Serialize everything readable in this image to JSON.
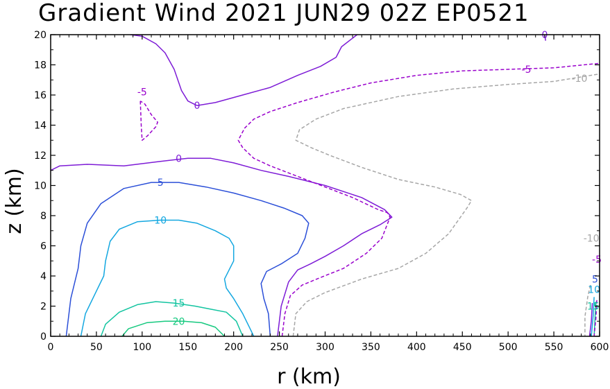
{
  "chart_data": {
    "type": "contour",
    "title": "Gradient Wind 2021 JUN29 02Z   EP0521",
    "xlabel": "r (km)",
    "ylabel": "z (km)",
    "xlim": [
      0,
      600
    ],
    "ylim": [
      0,
      20
    ],
    "xticks": [
      "0",
      "50",
      "100",
      "150",
      "200",
      "250",
      "300",
      "350",
      "400",
      "450",
      "500",
      "550",
      "600"
    ],
    "yticks": [
      "0",
      "2",
      "4",
      "6",
      "8",
      "10",
      "12",
      "14",
      "16",
      "18",
      "20"
    ],
    "levels": [
      {
        "value": -10,
        "label": "-10",
        "color": "#a6a6a6",
        "dashed": true
      },
      {
        "value": -5,
        "label": "-5",
        "color": "#9900cc",
        "dashed": true
      },
      {
        "value": 0,
        "label": "0",
        "color": "#7d1bd6",
        "dashed": false
      },
      {
        "value": 5,
        "label": "5",
        "color": "#2b4fd8",
        "dashed": false
      },
      {
        "value": 10,
        "label": "10",
        "color": "#13a7e0",
        "dashed": false
      },
      {
        "value": 15,
        "label": "15",
        "color": "#12c4a0",
        "dashed": false
      },
      {
        "value": 20,
        "label": "20",
        "color": "#16c97f",
        "dashed": false
      }
    ],
    "contours": [
      {
        "level": "0",
        "points": [
          [
            87,
            20
          ],
          [
            100,
            19.9
          ],
          [
            115,
            19.4
          ],
          [
            125,
            18.8
          ],
          [
            135,
            17.7
          ],
          [
            143,
            16.3
          ],
          [
            150,
            15.6
          ],
          [
            160,
            15.3
          ],
          [
            180,
            15.5
          ],
          [
            210,
            16.0
          ],
          [
            240,
            16.5
          ],
          [
            270,
            17.3
          ],
          [
            295,
            17.9
          ],
          [
            312,
            18.5
          ],
          [
            318,
            19.2
          ],
          [
            335,
            20
          ]
        ]
      },
      {
        "level": "0",
        "points": [
          [
            0,
            11.0
          ],
          [
            10,
            11.3
          ],
          [
            40,
            11.4
          ],
          [
            80,
            11.3
          ],
          [
            120,
            11.6
          ],
          [
            150,
            11.8
          ],
          [
            175,
            11.8
          ],
          [
            200,
            11.5
          ],
          [
            230,
            11.0
          ],
          [
            260,
            10.6
          ],
          [
            300,
            10.0
          ],
          [
            340,
            9.2
          ],
          [
            365,
            8.4
          ],
          [
            373,
            7.9
          ],
          [
            360,
            7.4
          ],
          [
            340,
            6.8
          ],
          [
            320,
            6.0
          ],
          [
            300,
            5.3
          ],
          [
            284,
            4.8
          ],
          [
            270,
            4.4
          ],
          [
            260,
            3.6
          ],
          [
            252,
            2.0
          ],
          [
            248,
            0
          ]
        ]
      },
      {
        "level": "0",
        "points": [
          [
            540,
            20
          ],
          [
            541,
            19.6
          ]
        ]
      },
      {
        "level": "0",
        "points": [
          [
            592,
            2.2
          ],
          [
            591,
            1.0
          ],
          [
            589,
            0
          ]
        ]
      },
      {
        "level": "5",
        "points": [
          [
            17,
            0
          ],
          [
            22,
            2.5
          ],
          [
            30,
            4.5
          ],
          [
            33,
            6.0
          ],
          [
            40,
            7.5
          ],
          [
            55,
            8.8
          ],
          [
            80,
            9.8
          ],
          [
            110,
            10.2
          ],
          [
            140,
            10.2
          ],
          [
            170,
            9.9
          ],
          [
            200,
            9.5
          ],
          [
            230,
            9.0
          ],
          [
            255,
            8.5
          ],
          [
            275,
            8.0
          ],
          [
            282,
            7.5
          ],
          [
            278,
            6.5
          ],
          [
            270,
            5.5
          ],
          [
            252,
            4.8
          ],
          [
            236,
            4.3
          ],
          [
            230,
            3.5
          ],
          [
            233,
            2.5
          ],
          [
            238,
            1.5
          ],
          [
            240,
            0
          ]
        ]
      },
      {
        "level": "10",
        "points": [
          [
            33,
            0
          ],
          [
            38,
            1.5
          ],
          [
            50,
            3.0
          ],
          [
            58,
            4.0
          ],
          [
            60,
            5.0
          ],
          [
            65,
            6.3
          ],
          [
            75,
            7.1
          ],
          [
            95,
            7.6
          ],
          [
            120,
            7.7
          ],
          [
            140,
            7.7
          ],
          [
            160,
            7.5
          ],
          [
            180,
            7.0
          ],
          [
            195,
            6.5
          ],
          [
            200,
            6.0
          ],
          [
            200,
            5.0
          ],
          [
            195,
            4.4
          ],
          [
            190,
            3.8
          ],
          [
            192,
            3.2
          ],
          [
            200,
            2.5
          ],
          [
            210,
            1.5
          ],
          [
            218,
            0.5
          ],
          [
            222,
            0
          ]
        ]
      },
      {
        "level": "10",
        "points": [
          [
            594,
            2.6
          ],
          [
            593,
            1.4
          ],
          [
            591,
            0
          ]
        ]
      },
      {
        "level": "15",
        "points": [
          [
            55,
            0
          ],
          [
            60,
            0.8
          ],
          [
            75,
            1.6
          ],
          [
            95,
            2.1
          ],
          [
            115,
            2.3
          ],
          [
            135,
            2.2
          ],
          [
            158,
            2.0
          ],
          [
            175,
            1.8
          ],
          [
            192,
            1.6
          ],
          [
            203,
            1.0
          ],
          [
            210,
            0
          ]
        ]
      },
      {
        "level": "15",
        "points": [
          [
            596,
            2.3
          ],
          [
            595,
            1.2
          ],
          [
            594,
            0
          ]
        ]
      },
      {
        "level": "20",
        "points": [
          [
            78,
            0
          ],
          [
            85,
            0.5
          ],
          [
            105,
            0.9
          ],
          [
            125,
            1.0
          ],
          [
            145,
            1.0
          ],
          [
            165,
            0.9
          ],
          [
            180,
            0.6
          ],
          [
            190,
            0
          ]
        ]
      },
      {
        "level": "-5",
        "points": [
          [
            98,
            15.6
          ],
          [
            99,
            14.0
          ],
          [
            100,
            13.0
          ],
          [
            106,
            13.3
          ],
          [
            115,
            13.9
          ],
          [
            117,
            14.2
          ],
          [
            110,
            14.7
          ],
          [
            103,
            15.4
          ],
          [
            98,
            15.6
          ]
        ]
      },
      {
        "level": "-5",
        "points": [
          [
            253,
            0
          ],
          [
            256,
            1.5
          ],
          [
            262,
            2.7
          ],
          [
            275,
            3.4
          ],
          [
            295,
            3.9
          ],
          [
            320,
            4.5
          ],
          [
            345,
            5.5
          ],
          [
            362,
            6.5
          ],
          [
            371,
            7.9
          ],
          [
            368,
            8.2
          ],
          [
            358,
            8.4
          ],
          [
            330,
            9.2
          ],
          [
            300,
            9.9
          ],
          [
            270,
            10.6
          ],
          [
            240,
            11.3
          ],
          [
            222,
            11.8
          ],
          [
            210,
            12.5
          ],
          [
            205,
            13.0
          ],
          [
            212,
            13.8
          ],
          [
            222,
            14.4
          ],
          [
            240,
            14.9
          ],
          [
            270,
            15.5
          ],
          [
            310,
            16.2
          ],
          [
            350,
            16.8
          ],
          [
            400,
            17.3
          ],
          [
            450,
            17.6
          ],
          [
            500,
            17.7
          ],
          [
            550,
            17.8
          ],
          [
            600,
            18.1
          ]
        ]
      },
      {
        "level": "-5",
        "points": [
          [
            597,
            2.4
          ],
          [
            596,
            1.2
          ],
          [
            594,
            0
          ]
        ]
      },
      {
        "level": "-10",
        "points": [
          [
            265,
            0
          ],
          [
            268,
            1.5
          ],
          [
            280,
            2.3
          ],
          [
            300,
            2.9
          ],
          [
            340,
            3.8
          ],
          [
            380,
            4.5
          ],
          [
            410,
            5.5
          ],
          [
            435,
            6.8
          ],
          [
            455,
            8.5
          ],
          [
            460,
            9.0
          ],
          [
            448,
            9.4
          ],
          [
            420,
            9.9
          ],
          [
            380,
            10.4
          ],
          [
            340,
            11.2
          ],
          [
            305,
            12.0
          ],
          [
            285,
            12.5
          ],
          [
            268,
            13.0
          ],
          [
            272,
            13.7
          ],
          [
            290,
            14.4
          ],
          [
            320,
            15.1
          ],
          [
            380,
            15.9
          ],
          [
            440,
            16.4
          ],
          [
            500,
            16.7
          ],
          [
            550,
            16.9
          ],
          [
            600,
            17.4
          ]
        ]
      },
      {
        "level": "-10",
        "points": [
          [
            590,
            3.4
          ],
          [
            587,
            2.6
          ],
          [
            584,
            1.3
          ],
          [
            584,
            0
          ]
        ]
      }
    ],
    "contour_labels": [
      {
        "text": "0",
        "x": 160,
        "y": 15.3,
        "level": "0"
      },
      {
        "text": "0",
        "x": 140,
        "y": 11.8,
        "level": "0"
      },
      {
        "text": "0",
        "x": 540,
        "y": 20.0,
        "level": "0"
      },
      {
        "text": "5",
        "x": 120,
        "y": 10.2,
        "level": "5"
      },
      {
        "text": "10",
        "x": 120,
        "y": 7.7,
        "level": "10"
      },
      {
        "text": "15",
        "x": 140,
        "y": 2.2,
        "level": "15"
      },
      {
        "text": "20",
        "x": 140,
        "y": 1.0,
        "level": "20"
      },
      {
        "text": "-5",
        "x": 100,
        "y": 16.2,
        "level": "-5"
      },
      {
        "text": "-5",
        "x": 520,
        "y": 17.7,
        "level": "-5"
      },
      {
        "text": "-10",
        "x": 578,
        "y": 17.1,
        "level": "-10"
      },
      {
        "text": "-10",
        "x": 591,
        "y": 6.5,
        "level": "-10"
      },
      {
        "text": "-5",
        "x": 597,
        "y": 5.1,
        "level": "-5"
      },
      {
        "text": "5",
        "x": 595,
        "y": 3.8,
        "level": "5"
      },
      {
        "text": "10",
        "x": 594,
        "y": 3.1,
        "level": "10"
      },
      {
        "text": "15",
        "x": 593,
        "y": 2.0,
        "level": "15"
      }
    ]
  }
}
